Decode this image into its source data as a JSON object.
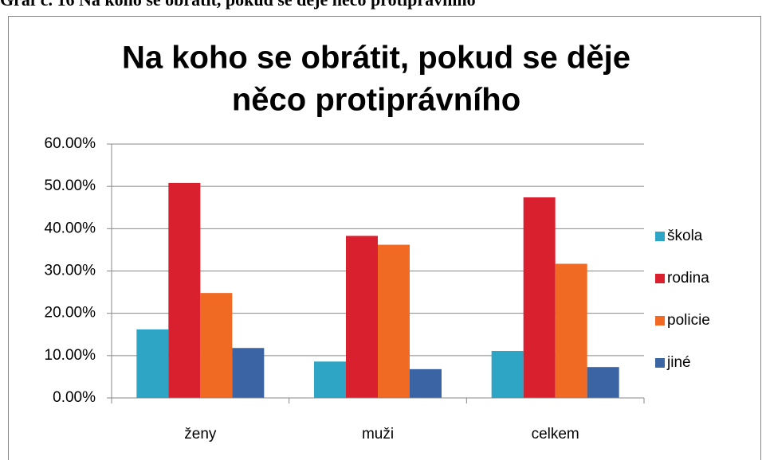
{
  "caption": "Graf č. 16 Na koho se obrátit, pokud se děje něco protiprávního",
  "chart_data": {
    "type": "bar",
    "title": [
      "Na koho se obrátit, pokud se děje",
      "něco protiprávního"
    ],
    "categories": [
      "ženy",
      "muži",
      "celkem"
    ],
    "series": [
      {
        "name": "škola",
        "color": "#2ea5c4",
        "values": [
          16.2,
          8.6,
          11.1
        ]
      },
      {
        "name": "rodina",
        "color": "#d9202e",
        "values": [
          50.8,
          38.3,
          47.4
        ]
      },
      {
        "name": "policie",
        "color": "#f06a24",
        "values": [
          24.8,
          36.2,
          31.7
        ]
      },
      {
        "name": "jiné",
        "color": "#3a64a4",
        "values": [
          11.8,
          6.8,
          7.3
        ]
      }
    ],
    "ylim": [
      0,
      60
    ],
    "yticks": [
      {
        "value": 0,
        "label": "0.00%"
      },
      {
        "value": 10,
        "label": "10.00%"
      },
      {
        "value": 20,
        "label": "20.00%"
      },
      {
        "value": 30,
        "label": "30.00%"
      },
      {
        "value": 40,
        "label": "40.00%"
      },
      {
        "value": 50,
        "label": "50.00%"
      },
      {
        "value": 60,
        "label": "60.00%"
      }
    ],
    "grid": true,
    "legend": "right"
  }
}
